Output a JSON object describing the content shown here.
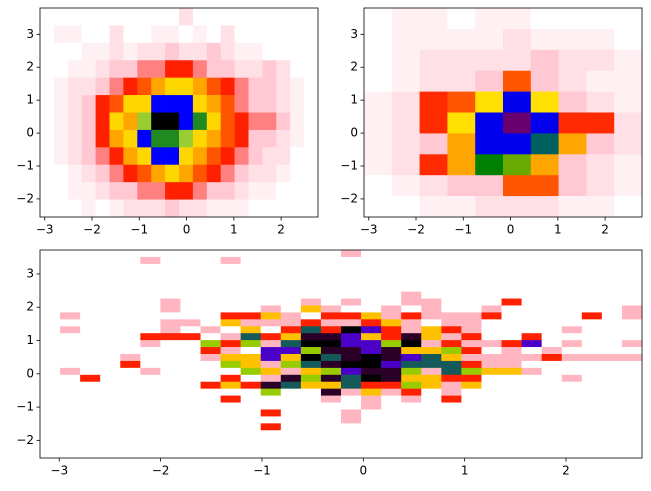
{
  "chart_data": [
    {
      "type": "heatmap",
      "xlim": [
        -3.1,
        2.78
      ],
      "ylim": [
        -2.55,
        3.8
      ],
      "xticks": [
        {
          "value": -3,
          "label": "−3"
        },
        {
          "value": -2,
          "label": "−2"
        },
        {
          "value": -1,
          "label": "−1"
        },
        0,
        1,
        2
      ],
      "yticks": [
        {
          "value": -2,
          "label": "−2"
        },
        {
          "value": -1,
          "label": "−1"
        },
        0,
        1,
        2,
        3
      ],
      "colors": [
        "#ffffff",
        "#fff0f3",
        "#ffe0e6",
        "#ffc8d2",
        "#ff8080",
        "#ff2000",
        "#ff5500",
        "#ffa500",
        "#ffd700",
        "#9acd32",
        "#1f8a1f",
        "#0000ff",
        "#000000"
      ],
      "values": [
        [
          0,
          0,
          0,
          0,
          0,
          0,
          0,
          0,
          0,
          0,
          2,
          0,
          0,
          0,
          0,
          0,
          0,
          0,
          0,
          0
        ],
        [
          0,
          1,
          1,
          0,
          0,
          2,
          0,
          0,
          1,
          1,
          0,
          1,
          0,
          2,
          0,
          0,
          0,
          0,
          0,
          0
        ],
        [
          0,
          0,
          0,
          1,
          1,
          2,
          1,
          2,
          2,
          3,
          2,
          2,
          3,
          2,
          1,
          1,
          0,
          0,
          0,
          0
        ],
        [
          0,
          0,
          1,
          1,
          2,
          3,
          3,
          4,
          4,
          5,
          5,
          4,
          3,
          3,
          2,
          2,
          3,
          2,
          0,
          0
        ],
        [
          0,
          1,
          2,
          2,
          3,
          4,
          5,
          6,
          7,
          8,
          8,
          7,
          6,
          5,
          4,
          3,
          3,
          2,
          1,
          0
        ],
        [
          0,
          1,
          2,
          3,
          5,
          6,
          8,
          8,
          11,
          11,
          11,
          8,
          7,
          6,
          4,
          3,
          3,
          2,
          1,
          0
        ],
        [
          0,
          1,
          2,
          3,
          5,
          8,
          7,
          9,
          12,
          12,
          11,
          10,
          8,
          6,
          5,
          4,
          4,
          3,
          1,
          0
        ],
        [
          0,
          1,
          2,
          3,
          5,
          7,
          8,
          11,
          10,
          10,
          9,
          8,
          7,
          6,
          5,
          3,
          3,
          2,
          1,
          0
        ],
        [
          0,
          1,
          2,
          3,
          4,
          5,
          7,
          8,
          11,
          11,
          8,
          7,
          6,
          5,
          4,
          3,
          2,
          2,
          0,
          0
        ],
        [
          0,
          0,
          1,
          2,
          3,
          4,
          5,
          6,
          7,
          8,
          7,
          6,
          5,
          4,
          3,
          2,
          2,
          1,
          0,
          0
        ],
        [
          0,
          0,
          1,
          1,
          2,
          3,
          3,
          4,
          4,
          5,
          5,
          4,
          3,
          3,
          2,
          1,
          1,
          0,
          0,
          0
        ],
        [
          0,
          0,
          0,
          1,
          0,
          1,
          2,
          2,
          2,
          3,
          2,
          2,
          1,
          1,
          1,
          0,
          0,
          0,
          0,
          0
        ]
      ]
    },
    {
      "type": "heatmap",
      "xlim": [
        -3.1,
        2.78
      ],
      "ylim": [
        -2.55,
        3.8
      ],
      "xticks": [
        {
          "value": -3,
          "label": "−3"
        },
        {
          "value": -2,
          "label": "−2"
        },
        {
          "value": -1,
          "label": "−1"
        },
        0,
        1,
        2
      ],
      "yticks": [
        {
          "value": -2,
          "label": "−2"
        },
        {
          "value": -1,
          "label": "−1"
        },
        0,
        1,
        2,
        3
      ],
      "colors": [
        "#ffffff",
        "#fff0f3",
        "#ffe0e6",
        "#ffc8d2",
        "#ff2a00",
        "#ff5500",
        "#ffa500",
        "#ffe000",
        "#6aaa00",
        "#008000",
        "#005f5f",
        "#0000ee",
        "#6a0070"
      ],
      "values": [
        [
          0,
          1,
          1,
          0,
          1,
          1,
          0,
          0,
          0,
          0
        ],
        [
          0,
          1,
          1,
          1,
          1,
          2,
          1,
          1,
          1,
          0
        ],
        [
          0,
          1,
          2,
          2,
          2,
          2,
          3,
          2,
          2,
          1
        ],
        [
          0,
          1,
          2,
          2,
          3,
          5,
          3,
          2,
          1,
          1
        ],
        [
          1,
          2,
          4,
          5,
          7,
          11,
          7,
          3,
          2,
          1
        ],
        [
          1,
          2,
          4,
          7,
          11,
          12,
          11,
          4,
          4,
          2
        ],
        [
          1,
          2,
          3,
          6,
          11,
          11,
          10,
          6,
          3,
          2
        ],
        [
          1,
          2,
          4,
          6,
          9,
          8,
          6,
          3,
          2,
          1
        ],
        [
          0,
          1,
          2,
          3,
          3,
          5,
          5,
          3,
          2,
          1
        ],
        [
          0,
          0,
          1,
          1,
          2,
          2,
          2,
          1,
          1,
          0
        ]
      ]
    },
    {
      "type": "heatmap",
      "xlim": [
        -3.19,
        2.75
      ],
      "ylim": [
        -2.53,
        3.72
      ],
      "xticks": [
        {
          "value": -3,
          "label": "−3"
        },
        {
          "value": -2,
          "label": "−2"
        },
        {
          "value": -1,
          "label": "−1"
        },
        0,
        1,
        2
      ],
      "yticks": [
        {
          "value": -2,
          "label": "−2"
        },
        {
          "value": -1,
          "label": "−1"
        },
        0,
        1,
        2,
        3
      ],
      "colors": [
        "#ffffff",
        "#ffb6c1",
        "#ff2000",
        "#ffc000",
        "#99cc00",
        "#145a5a",
        "#4b00c8",
        "#2a0028",
        "#000000"
      ],
      "values": [
        [
          0,
          0,
          0,
          0,
          0,
          0,
          0,
          0,
          0,
          0,
          0,
          0,
          0,
          0,
          0,
          1,
          0,
          0,
          0,
          0,
          0,
          0,
          0,
          0,
          0,
          0,
          0,
          0,
          0,
          0
        ],
        [
          0,
          0,
          0,
          0,
          0,
          1,
          0,
          0,
          0,
          1,
          0,
          0,
          0,
          0,
          0,
          0,
          0,
          0,
          0,
          0,
          0,
          0,
          0,
          0,
          0,
          0,
          0,
          0,
          0,
          0
        ],
        [
          0,
          0,
          0,
          0,
          0,
          0,
          0,
          0,
          0,
          0,
          0,
          0,
          0,
          0,
          0,
          0,
          0,
          0,
          0,
          0,
          0,
          0,
          0,
          0,
          0,
          0,
          0,
          0,
          0,
          0
        ],
        [
          0,
          0,
          0,
          0,
          0,
          0,
          0,
          0,
          0,
          0,
          0,
          0,
          0,
          0,
          0,
          0,
          0,
          0,
          0,
          0,
          0,
          0,
          0,
          0,
          0,
          0,
          0,
          0,
          0,
          0
        ],
        [
          0,
          0,
          0,
          0,
          0,
          0,
          0,
          0,
          0,
          0,
          0,
          0,
          0,
          0,
          0,
          0,
          0,
          0,
          0,
          0,
          0,
          0,
          0,
          0,
          0,
          0,
          0,
          0,
          0,
          0
        ],
        [
          0,
          0,
          0,
          0,
          0,
          0,
          0,
          0,
          0,
          0,
          0,
          0,
          0,
          0,
          0,
          0,
          0,
          0,
          0,
          0,
          0,
          0,
          0,
          0,
          0,
          0,
          0,
          0,
          0,
          0
        ],
        [
          0,
          0,
          0,
          0,
          0,
          0,
          0,
          0,
          0,
          0,
          0,
          0,
          0,
          0,
          0,
          0,
          0,
          0,
          1,
          0,
          0,
          0,
          0,
          0,
          0,
          0,
          0,
          0,
          0,
          0
        ],
        [
          0,
          0,
          0,
          0,
          0,
          0,
          1,
          0,
          0,
          0,
          0,
          0,
          0,
          1,
          0,
          1,
          0,
          0,
          1,
          1,
          0,
          0,
          0,
          2,
          0,
          0,
          0,
          0,
          0,
          0
        ],
        [
          0,
          0,
          0,
          0,
          0,
          0,
          1,
          0,
          0,
          0,
          0,
          1,
          0,
          3,
          1,
          0,
          0,
          1,
          0,
          1,
          0,
          0,
          1,
          0,
          0,
          0,
          0,
          0,
          0,
          1
        ],
        [
          0,
          1,
          0,
          0,
          0,
          0,
          0,
          0,
          0,
          2,
          2,
          3,
          1,
          0,
          2,
          2,
          3,
          1,
          2,
          1,
          1,
          1,
          2,
          0,
          0,
          0,
          0,
          2,
          0,
          1
        ],
        [
          0,
          0,
          0,
          0,
          0,
          0,
          1,
          1,
          0,
          3,
          1,
          1,
          1,
          2,
          1,
          1,
          2,
          3,
          1,
          0,
          1,
          1,
          0,
          0,
          0,
          0,
          0,
          0,
          0,
          0
        ],
        [
          0,
          1,
          0,
          0,
          0,
          0,
          1,
          0,
          1,
          0,
          3,
          0,
          2,
          5,
          2,
          8,
          6,
          2,
          1,
          3,
          2,
          1,
          0,
          0,
          0,
          0,
          1,
          0,
          0,
          0
        ],
        [
          0,
          0,
          0,
          0,
          0,
          2,
          2,
          2,
          0,
          1,
          5,
          2,
          3,
          7,
          7,
          6,
          3,
          2,
          7,
          3,
          1,
          2,
          0,
          0,
          2,
          0,
          0,
          0,
          0,
          0
        ],
        [
          0,
          0,
          0,
          0,
          0,
          1,
          0,
          0,
          4,
          2,
          4,
          1,
          5,
          8,
          8,
          6,
          6,
          4,
          8,
          1,
          2,
          1,
          1,
          2,
          6,
          0,
          1,
          0,
          0,
          1
        ],
        [
          0,
          0,
          0,
          0,
          0,
          0,
          0,
          0,
          2,
          1,
          0,
          6,
          6,
          4,
          7,
          7,
          6,
          7,
          3,
          3,
          4,
          2,
          0,
          1,
          0,
          1,
          0,
          0,
          0,
          0
        ],
        [
          0,
          0,
          0,
          0,
          1,
          0,
          0,
          0,
          1,
          3,
          3,
          6,
          3,
          8,
          5,
          7,
          8,
          7,
          6,
          5,
          3,
          1,
          1,
          1,
          1,
          2,
          1,
          1,
          1,
          1
        ],
        [
          0,
          0,
          0,
          0,
          2,
          0,
          0,
          0,
          0,
          4,
          3,
          1,
          4,
          5,
          7,
          8,
          8,
          6,
          5,
          5,
          5,
          2,
          1,
          1,
          0,
          0,
          0,
          0,
          0,
          0
        ],
        [
          0,
          1,
          0,
          0,
          0,
          1,
          0,
          0,
          0,
          0,
          4,
          3,
          1,
          3,
          4,
          6,
          7,
          7,
          4,
          1,
          5,
          4,
          3,
          3,
          1,
          0,
          0,
          0,
          0,
          0
        ],
        [
          0,
          0,
          2,
          0,
          0,
          0,
          0,
          0,
          0,
          2,
          0,
          1,
          7,
          4,
          7,
          5,
          8,
          7,
          3,
          3,
          2,
          2,
          0,
          0,
          0,
          0,
          1,
          0,
          0,
          0
        ],
        [
          0,
          0,
          0,
          0,
          0,
          0,
          0,
          0,
          2,
          3,
          2,
          7,
          5,
          3,
          3,
          5,
          2,
          2,
          4,
          3,
          1,
          3,
          0,
          0,
          0,
          0,
          0,
          0,
          0,
          0
        ],
        [
          0,
          0,
          0,
          0,
          0,
          0,
          0,
          0,
          0,
          0,
          0,
          4,
          0,
          0,
          7,
          1,
          3,
          1,
          2,
          0,
          1,
          0,
          0,
          0,
          0,
          0,
          0,
          0,
          0,
          0
        ],
        [
          0,
          0,
          0,
          0,
          0,
          0,
          0,
          0,
          0,
          2,
          0,
          0,
          0,
          0,
          1,
          0,
          1,
          0,
          1,
          0,
          2,
          0,
          0,
          0,
          0,
          0,
          0,
          0,
          0,
          0
        ],
        [
          0,
          0,
          0,
          0,
          0,
          0,
          0,
          0,
          0,
          0,
          0,
          0,
          0,
          0,
          0,
          0,
          1,
          0,
          0,
          0,
          0,
          0,
          0,
          0,
          0,
          0,
          0,
          0,
          0,
          0
        ],
        [
          0,
          0,
          0,
          0,
          0,
          0,
          0,
          0,
          0,
          0,
          0,
          2,
          0,
          0,
          0,
          1,
          0,
          0,
          0,
          0,
          0,
          0,
          0,
          0,
          0,
          0,
          0,
          0,
          0,
          0
        ],
        [
          0,
          0,
          0,
          0,
          0,
          0,
          0,
          0,
          0,
          0,
          0,
          0,
          0,
          0,
          0,
          1,
          0,
          0,
          0,
          0,
          0,
          0,
          0,
          0,
          0,
          0,
          0,
          0,
          0,
          0
        ],
        [
          0,
          0,
          0,
          0,
          0,
          0,
          0,
          0,
          0,
          0,
          0,
          2,
          0,
          0,
          0,
          0,
          0,
          0,
          0,
          0,
          0,
          0,
          0,
          0,
          0,
          0,
          0,
          0,
          0,
          0
        ],
        [
          0,
          0,
          0,
          0,
          0,
          0,
          0,
          0,
          0,
          0,
          0,
          0,
          0,
          0,
          0,
          0,
          0,
          0,
          0,
          0,
          0,
          0,
          0,
          0,
          0,
          0,
          0,
          0,
          0,
          0
        ],
        [
          0,
          0,
          0,
          0,
          0,
          0,
          0,
          0,
          0,
          0,
          0,
          0,
          0,
          0,
          0,
          0,
          0,
          0,
          0,
          0,
          0,
          0,
          0,
          0,
          0,
          0,
          0,
          0,
          0,
          0
        ],
        [
          0,
          0,
          0,
          0,
          0,
          0,
          0,
          0,
          0,
          0,
          0,
          0,
          0,
          0,
          0,
          0,
          0,
          0,
          0,
          0,
          0,
          0,
          0,
          0,
          0,
          0,
          0,
          0,
          0,
          0
        ],
        [
          0,
          0,
          0,
          0,
          0,
          0,
          0,
          0,
          0,
          0,
          0,
          0,
          0,
          0,
          0,
          0,
          0,
          0,
          0,
          0,
          0,
          0,
          0,
          0,
          0,
          0,
          0,
          0,
          0,
          0
        ]
      ]
    }
  ]
}
